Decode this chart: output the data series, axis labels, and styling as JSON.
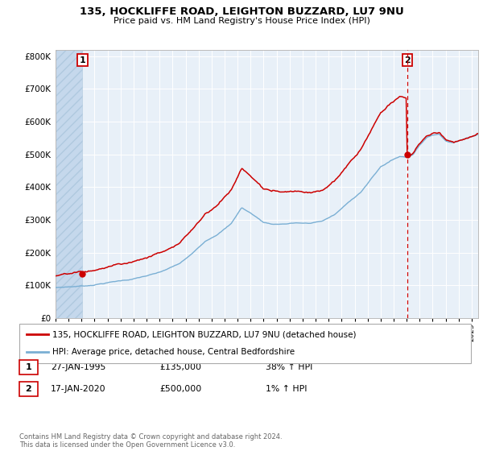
{
  "title_line1": "135, HOCKLIFFE ROAD, LEIGHTON BUZZARD, LU7 9NU",
  "title_line2": "Price paid vs. HM Land Registry's House Price Index (HPI)",
  "legend_line1": "135, HOCKLIFFE ROAD, LEIGHTON BUZZARD, LU7 9NU (detached house)",
  "legend_line2": "HPI: Average price, detached house, Central Bedfordshire",
  "annotation1_date": "27-JAN-1995",
  "annotation1_price": "£135,000",
  "annotation1_hpi": "38% ↑ HPI",
  "annotation2_date": "17-JAN-2020",
  "annotation2_price": "£500,000",
  "annotation2_hpi": "1% ↑ HPI",
  "footer": "Contains HM Land Registry data © Crown copyright and database right 2024.\nThis data is licensed under the Open Government Licence v3.0.",
  "plot_bg": "#e8f0f8",
  "red_color": "#cc0000",
  "blue_color": "#7aafd4",
  "ylim": [
    0,
    820000
  ],
  "yticks": [
    0,
    100000,
    200000,
    300000,
    400000,
    500000,
    600000,
    700000,
    800000
  ],
  "xlim_start": 1993.0,
  "xlim_end": 2025.5,
  "sale1_year": 1995.07,
  "sale1_value": 135000,
  "sale2_year": 2020.05,
  "sale2_value": 500000,
  "hatch_end": 1995.07
}
